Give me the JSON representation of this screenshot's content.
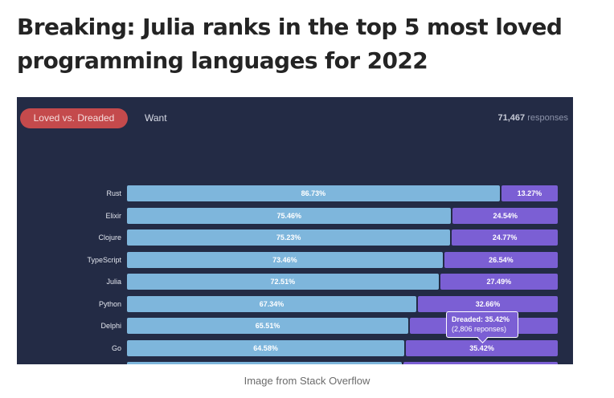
{
  "headline": "Breaking: Julia ranks in the top 5 most loved programming languages for 2022",
  "figure": {
    "tab_active": "Loved vs. Dreaded",
    "tab_other": "Want",
    "responses_count": "71,467",
    "responses_label": "responses",
    "tooltip": {
      "title": "Dreaded: 35.42%",
      "detail": "(2,806 reponses)"
    },
    "colors": {
      "loved": "#7eb6dc",
      "dreaded": "#7b5fd4",
      "tab_active": "#c44a4c",
      "background": "#232b45"
    }
  },
  "chart_data": {
    "type": "bar",
    "categories": [
      "Rust",
      "Elixir",
      "Clojure",
      "TypeScript",
      "Julia",
      "Python",
      "Delphi",
      "Go"
    ],
    "series": [
      {
        "name": "Loved vs. Dreaded",
        "values": [
          86.73,
          75.46,
          75.23,
          73.46,
          72.51,
          67.34,
          65.51,
          64.58
        ]
      },
      {
        "name": "",
        "values": [
          13.27,
          24.54,
          24.77,
          26.54,
          27.49,
          32.66,
          34.49,
          35.42
        ]
      }
    ],
    "labels_loved": [
      "86.73%",
      "75.46%",
      "75.23%",
      "73.46%",
      "72.51%",
      "67.34%",
      "65.51%",
      "64.58%"
    ],
    "labels_dreaded": [
      "13.27%",
      "24.54%",
      "24.77%",
      "26.54%",
      "27.49%",
      "32.66%",
      "",
      "35.42%"
    ]
  },
  "caption": "Image from Stack Overflow"
}
